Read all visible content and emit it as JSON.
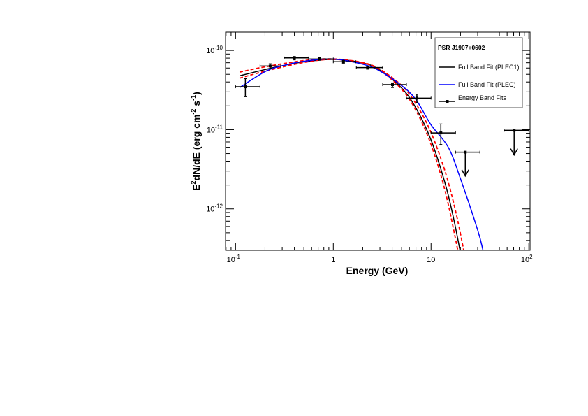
{
  "chart_data": {
    "type": "scatter",
    "title": "",
    "xlabel": "Energy (GeV)",
    "ylabel_parts": {
      "a": "E",
      "a_sup": "2",
      "b": "dN/dE (erg cm",
      "b_sup": "-2",
      "c": " s",
      "c_sup": "-1",
      "d": ")"
    },
    "x_scale": "log",
    "y_scale": "log",
    "xlim": [
      0.079,
      103
    ],
    "ylim": [
      3e-13,
      1.7e-10
    ],
    "x_ticks": [
      {
        "base": "10",
        "exp": "-1",
        "value": 0.1
      },
      {
        "base": "1",
        "exp": "",
        "value": 1
      },
      {
        "base": "10",
        "exp": "",
        "value": 10
      },
      {
        "base": "10",
        "exp": "2",
        "value": 100
      }
    ],
    "y_ticks": [
      {
        "base": "10",
        "exp": "-10",
        "value": 1e-10
      },
      {
        "base": "10",
        "exp": "-11",
        "value": 1e-11
      },
      {
        "base": "10",
        "exp": "-12",
        "value": 1e-12
      }
    ],
    "grid": false,
    "legend": {
      "placement": "top-right",
      "title": "PSR J1907+0602",
      "entries": [
        {
          "label": "Full Band Fit (PLEC1)",
          "color": "#000000",
          "style": "line"
        },
        {
          "label": "Full Band Fit (PLEC)",
          "color": "#0000ff",
          "style": "line"
        },
        {
          "label": "Energy Band Fits",
          "color": "#000000",
          "style": "errorbar"
        }
      ]
    },
    "series": [
      {
        "name": "Full Band Fit (PLEC1)",
        "kind": "line",
        "color": "#000000",
        "dash": false,
        "x": [
          0.11,
          0.2,
          0.3,
          0.5,
          1,
          2,
          3,
          5,
          7,
          10,
          14,
          17,
          20
        ],
        "y": [
          4.79e-11,
          5.74e-11,
          6.41e-11,
          7.18e-11,
          7.71e-11,
          6.95e-11,
          5.66e-11,
          3.36e-11,
          1.88e-11,
          7.41e-12,
          2.05e-12,
          7.6e-13,
          2.8e-13
        ]
      },
      {
        "name": "",
        "kind": "line",
        "color": "#ff0000",
        "dash": true,
        "x": [
          0.11,
          0.2,
          0.5,
          1,
          2,
          3,
          5,
          7,
          10,
          14,
          18,
          21.6
        ],
        "y": [
          5.33e-11,
          6.21e-11,
          7.45e-11,
          7.82e-11,
          7.03e-11,
          5.79e-11,
          3.61e-11,
          2.13e-11,
          9.2e-12,
          2.9e-12,
          8.9e-13,
          3e-13
        ]
      },
      {
        "name": "",
        "kind": "line",
        "color": "#ff0000",
        "dash": true,
        "x": [
          0.11,
          0.2,
          0.5,
          1,
          2,
          3,
          5,
          7,
          10,
          14,
          18.8
        ],
        "y": [
          4.47e-11,
          5.47e-11,
          7.06e-11,
          7.71e-11,
          6.97e-11,
          5.62e-11,
          3.24e-11,
          1.75e-11,
          6.5e-12,
          1.64e-12,
          3e-13
        ]
      },
      {
        "name": "Full Band Fit (PLEC)",
        "kind": "line",
        "color": "#0000ff",
        "dash": false,
        "x": [
          0.11,
          0.2,
          0.3,
          0.5,
          1,
          2,
          3,
          5,
          7,
          10,
          15,
          20,
          30,
          34
        ],
        "y": [
          3.4e-11,
          5.4e-11,
          6.4e-11,
          7.3e-11,
          7.8e-11,
          6.7e-11,
          5.5e-11,
          3.6e-11,
          2.4e-11,
          1.15e-11,
          6e-12,
          2.4e-12,
          5.4e-13,
          3e-13
        ]
      },
      {
        "name": "Energy Band Fits",
        "kind": "points",
        "color": "#000000",
        "points": [
          {
            "x": 0.126,
            "xlo": 0.1,
            "xhi": 0.178,
            "y": 3.48e-11,
            "ylo": 2.6e-11,
            "yhi": 4.4e-11,
            "ul": false
          },
          {
            "x": 0.226,
            "xlo": 0.178,
            "xhi": 0.29,
            "y": 6.36e-11,
            "ylo": 5.9e-11,
            "yhi": 6.8e-11,
            "ul": false
          },
          {
            "x": 0.4,
            "xlo": 0.314,
            "xhi": 0.56,
            "y": 8.05e-11,
            "ylo": 7.6e-11,
            "yhi": 8.4e-11,
            "ul": false
          },
          {
            "x": 0.72,
            "xlo": 0.56,
            "xhi": 1.0,
            "y": 7.8e-11,
            "ylo": 7.5e-11,
            "yhi": 8.1e-11,
            "ul": false
          },
          {
            "x": 1.27,
            "xlo": 1.0,
            "xhi": 1.7,
            "y": 7.2e-11,
            "ylo": 6.9e-11,
            "yhi": 7.5e-11,
            "ul": false
          },
          {
            "x": 2.24,
            "xlo": 1.72,
            "xhi": 3.2,
            "y": 6.07e-11,
            "ylo": 5.8e-11,
            "yhi": 6.35e-11,
            "ul": false
          },
          {
            "x": 4.03,
            "xlo": 3.2,
            "xhi": 5.6,
            "y": 3.7e-11,
            "ylo": 3.4e-11,
            "yhi": 3.9e-11,
            "ul": false
          },
          {
            "x": 7.16,
            "xlo": 5.6,
            "xhi": 10.0,
            "y": 2.5e-11,
            "ylo": 2.2e-11,
            "yhi": 2.8e-11,
            "ul": false
          },
          {
            "x": 12.6,
            "xlo": 10.0,
            "xhi": 17.8,
            "y": 9.1e-12,
            "ylo": 6.5e-12,
            "yhi": 1.18e-11,
            "ul": false
          },
          {
            "x": 22.4,
            "xlo": 17.8,
            "xhi": 31.6,
            "y": 5.2e-12,
            "ul": true,
            "arrow_to": 2.6e-12
          },
          {
            "x": 70.8,
            "xlo": 56,
            "xhi": 100,
            "y": 9.8e-12,
            "ul": true,
            "arrow_to": 4.8e-12
          }
        ]
      }
    ]
  }
}
